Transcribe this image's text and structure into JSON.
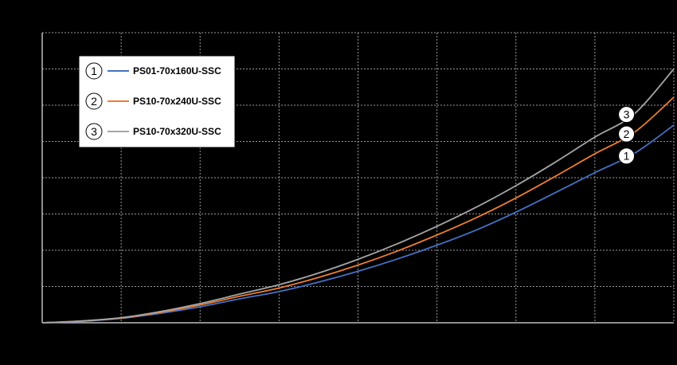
{
  "chart_data": {
    "type": "line",
    "title": "",
    "xlabel": "",
    "ylabel": "",
    "xlim": [
      0,
      8
    ],
    "ylim": [
      0,
      8
    ],
    "grid": true,
    "grid_style": "dashed",
    "background": "#000000",
    "legend_position": "top-left",
    "series": [
      {
        "name": "PS01-70x160U-SSC",
        "marker": "1",
        "color": "#4472C4",
        "x": [
          0,
          0.5,
          1,
          1.5,
          2,
          2.5,
          3,
          3.5,
          4,
          4.5,
          5,
          5.5,
          6,
          6.5,
          7,
          7.5,
          8
        ],
        "y": [
          0,
          0.04,
          0.12,
          0.26,
          0.44,
          0.66,
          0.86,
          1.12,
          1.42,
          1.76,
          2.14,
          2.56,
          3.05,
          3.59,
          4.14,
          4.67,
          5.45
        ]
      },
      {
        "name": "PS10-70x240U-SSC",
        "marker": "2",
        "color": "#ED7D31",
        "x": [
          0,
          0.5,
          1,
          1.5,
          2,
          2.5,
          3,
          3.5,
          4,
          4.5,
          5,
          5.5,
          6,
          6.5,
          7,
          7.5,
          8
        ],
        "y": [
          0,
          0.05,
          0.13,
          0.29,
          0.49,
          0.73,
          0.96,
          1.25,
          1.59,
          1.98,
          2.42,
          2.9,
          3.44,
          4.04,
          4.66,
          5.25,
          6.22
        ]
      },
      {
        "name": "PS10-70x320U-SSC",
        "marker": "3",
        "color": "#A5A5A5",
        "x": [
          0,
          0.5,
          1,
          1.5,
          2,
          2.5,
          3,
          3.5,
          4,
          4.5,
          5,
          5.5,
          6,
          6.5,
          7,
          7.5,
          8
        ],
        "y": [
          0,
          0.05,
          0.14,
          0.31,
          0.53,
          0.79,
          1.05,
          1.37,
          1.75,
          2.18,
          2.66,
          3.19,
          3.78,
          4.43,
          5.12,
          5.76,
          7.0
        ]
      }
    ]
  }
}
